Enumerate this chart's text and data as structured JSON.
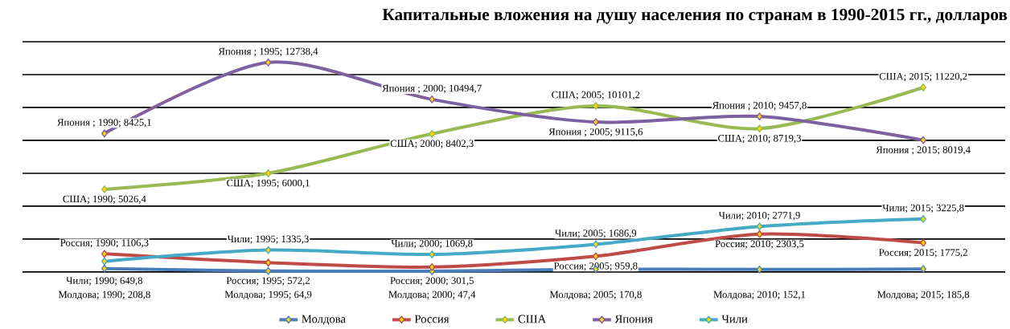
{
  "chart_data": {
    "type": "line",
    "title": "Капитальные вложения на душу населения по странам в 1990-2015 гг., долларов",
    "categories": [
      null,
      null,
      null,
      null,
      null,
      null
    ],
    "series": [
      {
        "name": "Молдова",
        "color": "#4a7ebb",
        "values": [
          208.8,
          64.9,
          47.4,
          170.8,
          152.1,
          185.8
        ],
        "value_labels": [
          "Молдова; 1990; 208,8",
          "Молдова; 1995; 64,9",
          "Молдова; 2000; 47,4",
          "Молдова; 2005; 170,8",
          "Молдова; 2010; 152,1",
          "Молдова; 2015; 185,8"
        ]
      },
      {
        "name": "Россия",
        "color": "#be4b48",
        "values": [
          1106.3,
          572.2,
          301.5,
          959.8,
          2303.5,
          1775.2
        ],
        "value_labels": [
          "Россия; 1990; 1106,3",
          "Россия; 1995; 572,2",
          "Россия; 2000; 301,5",
          "Россия; 2005; 959,8",
          "Россия; 2010; 2303,5",
          "Россия; 2015; 1775,2"
        ]
      },
      {
        "name": "США",
        "color": "#98b954",
        "values": [
          5026.4,
          6000.1,
          8402.3,
          10101.2,
          8719.3,
          11220.2
        ],
        "value_labels": [
          "США; 1990; 5026,4",
          "США; 1995; 6000,1",
          "США; 2000; 8402,3",
          "США; 2005; 10101,2",
          "США; 2010; 8719,3",
          "США; 2015; 11220,2"
        ]
      },
      {
        "name": "Япония",
        "color": "#7d60a0",
        "values": [
          8425.1,
          12738.4,
          10494.7,
          9115.6,
          9457.8,
          8019.4
        ],
        "value_labels": [
          "Япония ; 1990; 8425,1",
          "Япония ; 1995; 12738,4",
          "Япония ; 2000; 10494,7",
          "Япония ; 2005; 9115,6",
          "Япония ; 2010; 9457,8",
          "Япония ; 2015; 8019,4"
        ]
      },
      {
        "name": "Чили",
        "color": "#46aac5",
        "values": [
          649.8,
          1335.3,
          1069.8,
          1686.9,
          2771.9,
          3225.8
        ],
        "value_labels": [
          "Чили; 1990; 649,8",
          "Чили; 1995; 1335,3",
          "Чили; 2000; 1069,8",
          "Чили; 2005; 1686,9",
          "Чили; 2010; 2771,9",
          "Чили; 2015; 3225,8"
        ]
      }
    ],
    "ylim": [
      0,
      14000
    ],
    "yticks": [
      {
        "value": 0,
        "label": null
      },
      {
        "value": 2000,
        "label": null
      },
      {
        "value": 4000,
        "label": null
      },
      {
        "value": 6000,
        "label": null
      },
      {
        "value": 8000,
        "label": null
      },
      {
        "value": 10000,
        "label": null
      },
      {
        "value": 12000,
        "label": null
      },
      {
        "value": 14000,
        "label": null
      }
    ],
    "grid": "y",
    "legend": "bottom",
    "marker": "diamond"
  }
}
